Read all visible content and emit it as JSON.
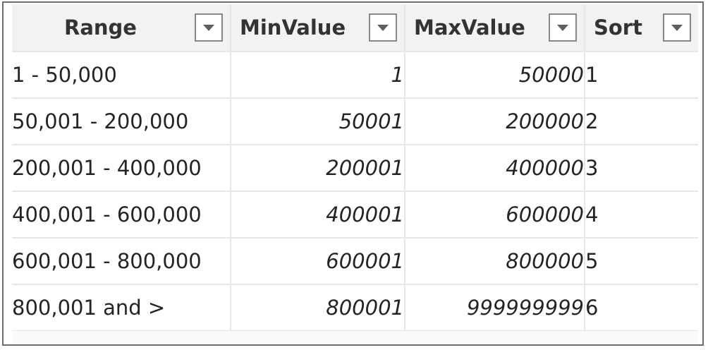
{
  "table": {
    "columns": [
      {
        "label": "Range"
      },
      {
        "label": "MinValue"
      },
      {
        "label": "MaxValue"
      },
      {
        "label": "Sort"
      }
    ],
    "rows": [
      [
        "1 - 50,000",
        "1",
        "50000",
        "1"
      ],
      [
        "50,001 - 200,000",
        "50001",
        "200000",
        "2"
      ],
      [
        "200,001 - 400,000",
        "200001",
        "400000",
        "3"
      ],
      [
        "400,001 - 600,000",
        "400001",
        "600000",
        "4"
      ],
      [
        "600,001 - 800,000",
        "600001",
        "800000",
        "5"
      ],
      [
        "800,001 and >",
        "800001",
        "999999999",
        "6"
      ]
    ]
  },
  "icons": {
    "filter": "chevron-down-icon"
  },
  "colors": {
    "header_bg": "#f3f2f1",
    "grid_line": "#e6e6e6",
    "frame_border": "#6e6e6e",
    "text": "#252423"
  }
}
